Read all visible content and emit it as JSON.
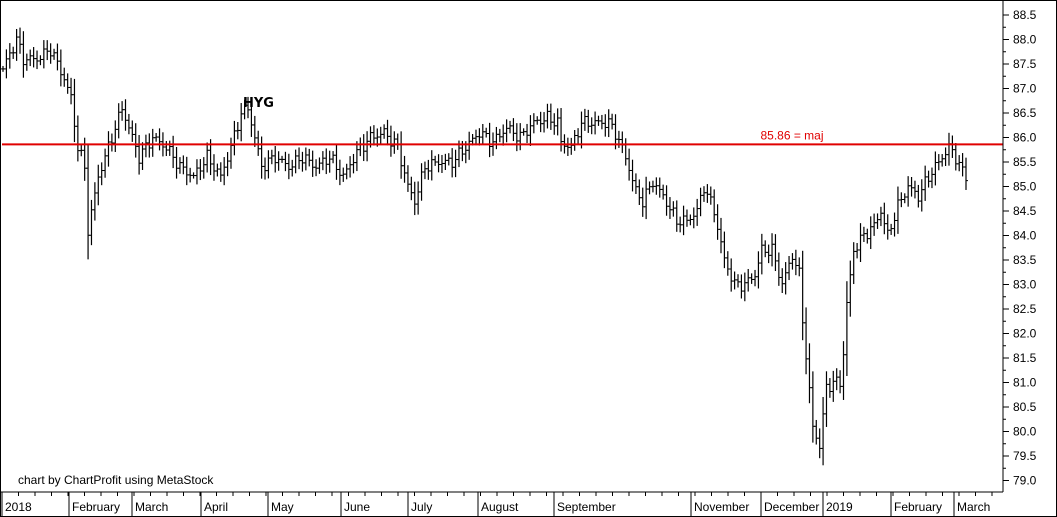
{
  "chart_data": {
    "type": "ohlc",
    "ticker": "HYG",
    "credit": "chart by ChartProfit using MetaStock",
    "ylim": [
      78.7,
      88.7
    ],
    "y_ticks": [
      "88.5",
      "88.0",
      "87.5",
      "87.0",
      "86.5",
      "86.0",
      "85.5",
      "85.0",
      "84.5",
      "84.0",
      "83.5",
      "83.0",
      "82.5",
      "82.0",
      "81.5",
      "81.0",
      "80.5",
      "80.0",
      "79.5",
      "79.0"
    ],
    "x_labels": [
      "2018",
      "February",
      "March",
      "April",
      "May",
      "June",
      "July",
      "August",
      "September",
      "November",
      "December",
      "2019",
      "February",
      "March"
    ],
    "hline": {
      "value": 85.86,
      "label": "85.86 = maj",
      "color": "#e00000"
    },
    "grid": false,
    "anchors": [
      [
        0,
        87.4
      ],
      [
        4,
        88.0
      ],
      [
        6,
        87.6
      ],
      [
        10,
        87.6
      ],
      [
        14,
        87.8
      ],
      [
        18,
        87.2
      ],
      [
        20,
        86.8
      ],
      [
        22,
        85.8
      ],
      [
        24,
        85.4
      ],
      [
        25,
        84.1
      ],
      [
        28,
        85.2
      ],
      [
        32,
        86.0
      ],
      [
        35,
        86.6
      ],
      [
        38,
        86.0
      ],
      [
        40,
        85.6
      ],
      [
        44,
        86.0
      ],
      [
        48,
        85.8
      ],
      [
        52,
        85.4
      ],
      [
        56,
        85.2
      ],
      [
        60,
        85.6
      ],
      [
        64,
        85.2
      ],
      [
        67,
        85.8
      ],
      [
        70,
        86.5
      ],
      [
        72,
        86.6
      ],
      [
        74,
        86.0
      ],
      [
        76,
        85.4
      ],
      [
        80,
        85.6
      ],
      [
        84,
        85.4
      ],
      [
        88,
        85.6
      ],
      [
        92,
        85.4
      ],
      [
        96,
        85.6
      ],
      [
        100,
        85.2
      ],
      [
        104,
        85.7
      ],
      [
        108,
        86.0
      ],
      [
        112,
        86.1
      ],
      [
        116,
        85.8
      ],
      [
        119,
        85.0
      ],
      [
        121,
        84.7
      ],
      [
        124,
        85.4
      ],
      [
        128,
        85.5
      ],
      [
        132,
        85.5
      ],
      [
        136,
        85.8
      ],
      [
        140,
        86.1
      ],
      [
        144,
        85.9
      ],
      [
        148,
        86.2
      ],
      [
        152,
        86.0
      ],
      [
        156,
        86.3
      ],
      [
        160,
        86.4
      ],
      [
        163,
        86.3
      ],
      [
        164,
        85.9
      ],
      [
        167,
        85.8
      ],
      [
        170,
        86.3
      ],
      [
        174,
        86.3
      ],
      [
        178,
        86.3
      ],
      [
        180,
        86.1
      ],
      [
        183,
        85.6
      ],
      [
        186,
        84.9
      ],
      [
        188,
        84.7
      ],
      [
        191,
        85.1
      ],
      [
        194,
        84.8
      ],
      [
        198,
        84.3
      ],
      [
        201,
        84.3
      ],
      [
        204,
        84.5
      ],
      [
        206,
        85.0
      ],
      [
        209,
        84.5
      ],
      [
        212,
        83.5
      ],
      [
        215,
        83.0
      ],
      [
        218,
        83.0
      ],
      [
        221,
        83.2
      ],
      [
        223,
        83.7
      ],
      [
        226,
        83.7
      ],
      [
        229,
        83.0
      ],
      [
        232,
        83.6
      ],
      [
        234,
        83.2
      ],
      [
        235,
        82.3
      ],
      [
        237,
        80.8
      ],
      [
        238,
        80.1
      ],
      [
        240,
        79.7
      ],
      [
        242,
        80.9
      ],
      [
        244,
        81.0
      ],
      [
        246,
        81.0
      ],
      [
        247,
        81.6
      ],
      [
        248,
        82.6
      ],
      [
        250,
        83.7
      ],
      [
        253,
        84.0
      ],
      [
        256,
        84.2
      ],
      [
        258,
        84.5
      ],
      [
        260,
        84.0
      ],
      [
        263,
        84.6
      ],
      [
        266,
        85.0
      ],
      [
        269,
        84.8
      ],
      [
        272,
        85.2
      ],
      [
        275,
        85.5
      ],
      [
        278,
        85.8
      ],
      [
        280,
        85.6
      ],
      [
        282,
        85.3
      ],
      [
        283,
        85.2
      ]
    ]
  }
}
